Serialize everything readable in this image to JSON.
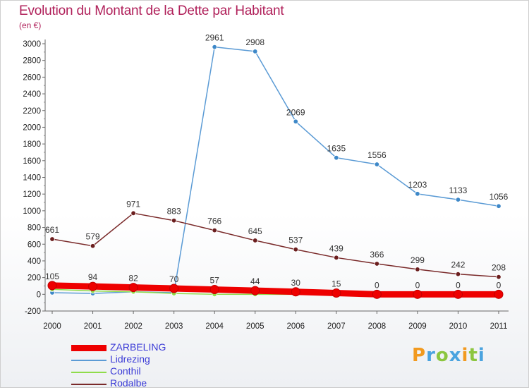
{
  "chart_data": {
    "type": "line",
    "title": "Evolution du Montant de la Dette par Habitant",
    "subtitle": "(en €)",
    "x": [
      "2000",
      "2001",
      "2002",
      "2003",
      "2004",
      "2005",
      "2006",
      "2007",
      "2008",
      "2009",
      "2010",
      "2011"
    ],
    "ylim": [
      -200,
      3000
    ],
    "yticks": [
      -200,
      0,
      200,
      400,
      600,
      800,
      1000,
      1200,
      1400,
      1600,
      1800,
      2000,
      2200,
      2400,
      2600,
      2800,
      3000
    ],
    "grid": false,
    "legend_position": "bottom-left",
    "series": [
      {
        "name": "ZARBELING",
        "color": "#ee0000",
        "marker_fill": "#ee0000",
        "thick": true,
        "values": [
          105,
          94,
          82,
          70,
          57,
          44,
          30,
          15,
          0,
          0,
          0,
          0
        ],
        "labels": [
          "105",
          "94",
          "82",
          "70",
          "57",
          "44",
          "30",
          "15",
          "0",
          "0",
          "0",
          "0"
        ]
      },
      {
        "name": "Lidrezing",
        "color": "#5b9bd5",
        "marker_fill": "#3e88c8",
        "thick": false,
        "values": [
          20,
          10,
          30,
          20,
          2961,
          2908,
          2069,
          1635,
          1556,
          1203,
          1133,
          1056
        ],
        "labels": [
          "",
          "",
          "",
          "",
          "2961",
          "2908",
          "2069",
          "1635",
          "1556",
          "1203",
          "1133",
          "1056"
        ]
      },
      {
        "name": "Conthil",
        "color": "#8fdc4a",
        "marker_fill": "#8fdc4a",
        "thick": false,
        "values": [
          60,
          40,
          30,
          10,
          0,
          0,
          0,
          0,
          0,
          0,
          0,
          0
        ],
        "labels": [
          "",
          "",
          "",
          "",
          "",
          "",
          "",
          "",
          "",
          "",
          "",
          ""
        ]
      },
      {
        "name": "Rodalbe",
        "color": "#7a2a2a",
        "marker_fill": "#6b1e1e",
        "thick": false,
        "values": [
          661,
          579,
          971,
          883,
          766,
          645,
          537,
          439,
          366,
          299,
          242,
          208
        ],
        "labels": [
          "661",
          "579",
          "971",
          "883",
          "766",
          "645",
          "537",
          "439",
          "366",
          "299",
          "242",
          "208"
        ]
      }
    ]
  },
  "branding": {
    "logo_letters": [
      {
        "ch": "P",
        "color": "#f29a1f"
      },
      {
        "ch": "r",
        "color": "#4aa3df"
      },
      {
        "ch": "o",
        "color": "#8cc63f"
      },
      {
        "ch": "x",
        "color": "#4aa3df"
      },
      {
        "ch": "i",
        "color": "#f29a1f"
      },
      {
        "ch": "t",
        "color": "#8cc63f"
      },
      {
        "ch": "i",
        "color": "#4aa3df"
      }
    ]
  }
}
